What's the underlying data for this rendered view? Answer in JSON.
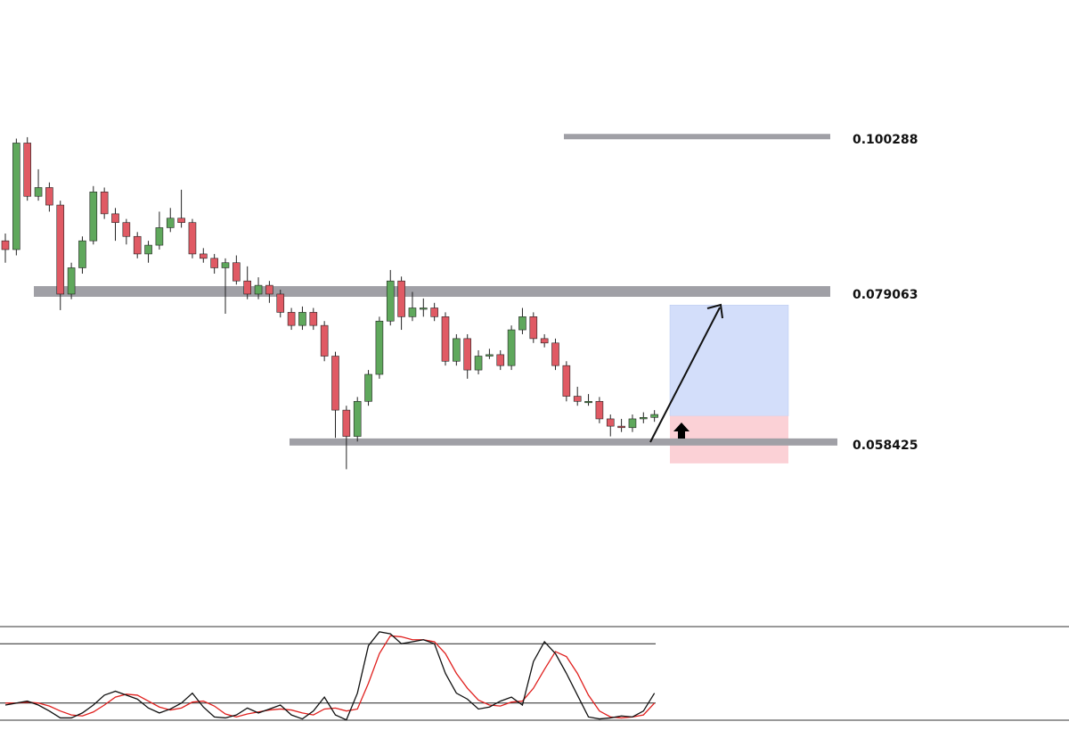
{
  "chart_data": {
    "type": "candlestick",
    "ylim": [
      0.0335,
      0.119
    ],
    "up_color": "#5fa85c",
    "down_color": "#e05a64",
    "level_color": "#a0a0a6",
    "levels": [
      0.100288,
      0.079063,
      0.058425
    ],
    "open": [
      0.086,
      0.0848,
      0.0994,
      0.0921,
      0.0933,
      0.0909,
      0.0787,
      0.0823,
      0.086,
      0.0927,
      0.0897,
      0.0885,
      0.0866,
      0.0842,
      0.0854,
      0.0878,
      0.0891,
      0.0885,
      0.0842,
      0.0836,
      0.0823,
      0.083,
      0.0805,
      0.0787,
      0.0799,
      0.0787,
      0.0762,
      0.0744,
      0.0762,
      0.0744,
      0.0702,
      0.0628,
      0.0592,
      0.064,
      0.0677,
      0.075,
      0.0805,
      0.0756,
      0.0768,
      0.0768,
      0.0756,
      0.0695,
      0.0726,
      0.0683,
      0.0702,
      0.0704,
      0.0689,
      0.0738,
      0.0756,
      0.0726,
      0.072,
      0.0689,
      0.0647,
      0.064,
      0.064,
      0.0616,
      0.0606,
      0.0604,
      0.0616,
      0.0618
    ],
    "high": [
      0.087,
      0.1,
      0.1002,
      0.0958,
      0.094,
      0.0915,
      0.083,
      0.0866,
      0.0935,
      0.0933,
      0.0905,
      0.089,
      0.0872,
      0.086,
      0.09,
      0.0905,
      0.093,
      0.089,
      0.085,
      0.0842,
      0.0836,
      0.084,
      0.0825,
      0.081,
      0.0805,
      0.0793,
      0.0768,
      0.077,
      0.0768,
      0.075,
      0.0708,
      0.0634,
      0.0646,
      0.0683,
      0.0756,
      0.082,
      0.0811,
      0.079,
      0.0781,
      0.0775,
      0.0762,
      0.0732,
      0.0732,
      0.071,
      0.0712,
      0.071,
      0.0744,
      0.0768,
      0.0762,
      0.0732,
      0.0726,
      0.0695,
      0.066,
      0.065,
      0.0646,
      0.0622,
      0.0616,
      0.0622,
      0.0625,
      0.0628
    ],
    "low": [
      0.083,
      0.084,
      0.0915,
      0.0915,
      0.09,
      0.0765,
      0.078,
      0.0815,
      0.0855,
      0.089,
      0.086,
      0.0855,
      0.0836,
      0.083,
      0.0848,
      0.0872,
      0.0878,
      0.0836,
      0.083,
      0.0815,
      0.076,
      0.08,
      0.078,
      0.078,
      0.0775,
      0.0755,
      0.0738,
      0.0738,
      0.0738,
      0.0695,
      0.059,
      0.0547,
      0.0585,
      0.0634,
      0.0671,
      0.0744,
      0.0738,
      0.075,
      0.0756,
      0.075,
      0.0689,
      0.0689,
      0.0671,
      0.0677,
      0.0698,
      0.0683,
      0.0683,
      0.0732,
      0.072,
      0.0714,
      0.0683,
      0.064,
      0.0634,
      0.0634,
      0.061,
      0.0592,
      0.0598,
      0.0598,
      0.061,
      0.0612
    ],
    "close": [
      0.0848,
      0.0994,
      0.0921,
      0.0933,
      0.0909,
      0.0787,
      0.0823,
      0.086,
      0.0927,
      0.0897,
      0.0885,
      0.0866,
      0.0842,
      0.0854,
      0.0878,
      0.0891,
      0.0885,
      0.0842,
      0.0836,
      0.0823,
      0.083,
      0.0805,
      0.0787,
      0.0799,
      0.0787,
      0.0762,
      0.0744,
      0.0762,
      0.0744,
      0.0702,
      0.0628,
      0.0592,
      0.064,
      0.0677,
      0.075,
      0.0805,
      0.0756,
      0.0768,
      0.0768,
      0.0756,
      0.0695,
      0.0726,
      0.0683,
      0.0702,
      0.0704,
      0.0689,
      0.0738,
      0.0756,
      0.0726,
      0.072,
      0.0689,
      0.0647,
      0.064,
      0.064,
      0.0616,
      0.0606,
      0.0604,
      0.0616,
      0.0618,
      0.0622
    ],
    "position": {
      "target": 0.0772,
      "entry": 0.062,
      "stop": 0.0555,
      "target_color": "#d3defa",
      "stop_color": "#fbd1d6"
    },
    "oscillator": {
      "ylim": [
        0,
        100
      ],
      "levels": [
        80,
        20
      ],
      "k": [
        18,
        20,
        22,
        18,
        12,
        5,
        5,
        10,
        18,
        28,
        32,
        28,
        24,
        15,
        10,
        14,
        20,
        30,
        16,
        6,
        5,
        8,
        15,
        10,
        14,
        18,
        8,
        4,
        12,
        26,
        8,
        3,
        30,
        78,
        92,
        90,
        80,
        82,
        84,
        80,
        50,
        30,
        24,
        14,
        16,
        22,
        26,
        18,
        62,
        82,
        70,
        50,
        28,
        6,
        4,
        5,
        7,
        6,
        12,
        30
      ],
      "d": [
        20,
        20,
        21,
        20,
        17,
        12,
        8,
        7,
        11,
        18,
        26,
        29,
        28,
        22,
        16,
        13,
        15,
        21,
        22,
        17,
        9,
        6,
        9,
        11,
        13,
        14,
        13,
        10,
        8,
        14,
        15,
        12,
        14,
        40,
        70,
        88,
        87,
        84,
        84,
        82,
        70,
        50,
        35,
        23,
        18,
        17,
        21,
        22,
        35,
        54,
        72,
        67,
        50,
        28,
        12,
        6,
        5,
        6,
        8,
        20
      ],
      "k_color": "#111111",
      "d_color": "#e0201e"
    }
  }
}
